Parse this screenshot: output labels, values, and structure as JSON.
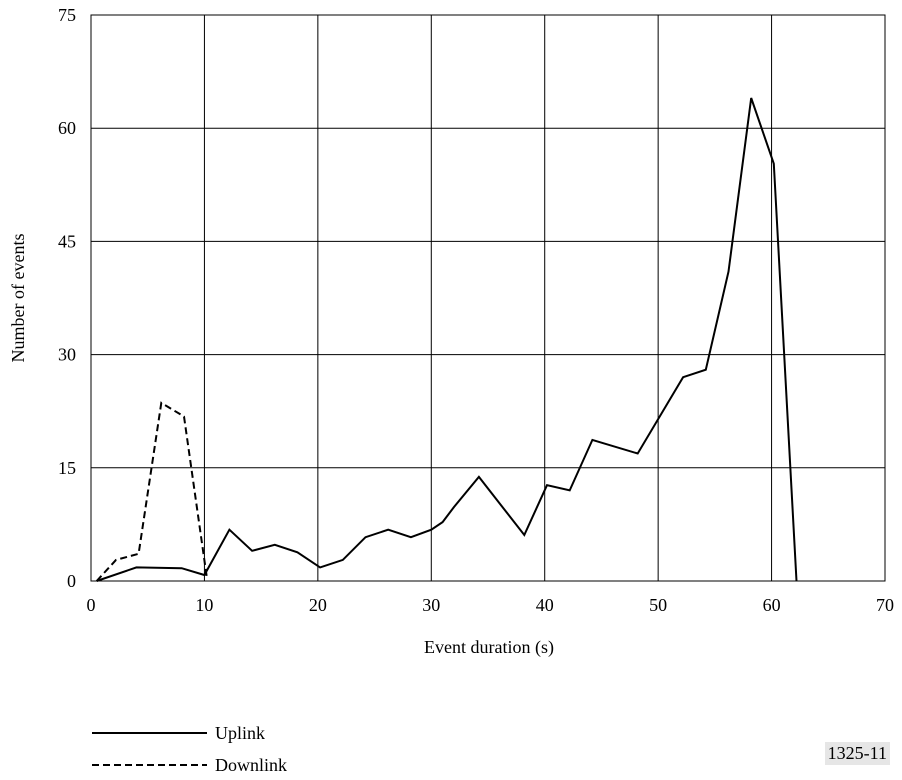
{
  "chart_data": {
    "type": "line",
    "xlabel": "Event duration (s)",
    "ylabel": "Number of events",
    "xlim": [
      0,
      70
    ],
    "ylim": [
      0,
      75
    ],
    "xticks": [
      0,
      10,
      20,
      30,
      40,
      50,
      60,
      70
    ],
    "yticks": [
      0,
      15,
      30,
      45,
      60,
      75
    ],
    "grid": true,
    "legend_position": "bottom-left",
    "series": [
      {
        "name": "Uplink",
        "style": "solid",
        "x": [
          0.5,
          4,
          8,
          10,
          12.2,
          14.2,
          16.2,
          18.2,
          20.2,
          22.2,
          24.2,
          26.2,
          28.2,
          30,
          31,
          32,
          34.2,
          38.2,
          40.2,
          42.2,
          44.2,
          48.2,
          52.2,
          54.2,
          56.2,
          58.2,
          60.2,
          62.2
        ],
        "y": [
          0,
          1.8,
          1.7,
          0.8,
          6.8,
          4,
          4.8,
          3.8,
          1.8,
          2.8,
          5.8,
          6.8,
          5.8,
          6.8,
          7.8,
          9.8,
          13.8,
          6.1,
          12.7,
          12,
          18.7,
          16.9,
          27,
          28,
          41,
          64,
          55.3,
          0
        ]
      },
      {
        "name": "Downlink",
        "style": "dashed",
        "x": [
          0.5,
          2.2,
          4.2,
          6.2,
          8.2,
          10.2
        ],
        "y": [
          0,
          2.8,
          3.6,
          23.6,
          21.8,
          0.6
        ]
      }
    ]
  },
  "figure_id": "1325-11"
}
